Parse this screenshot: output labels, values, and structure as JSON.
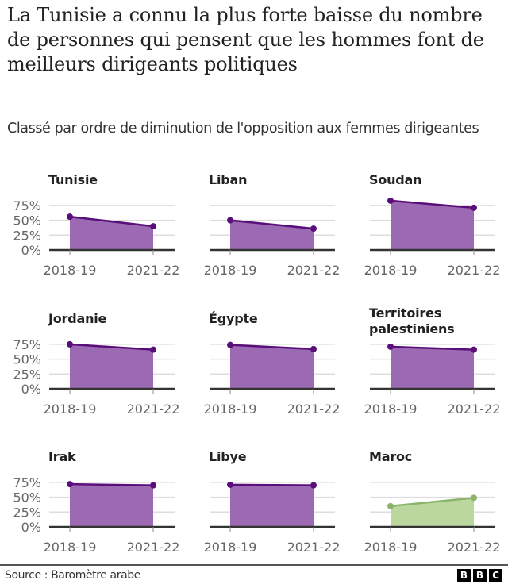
{
  "title": "La Tunisie a connu la plus forte baisse du nombre de personnes qui pensent que les hommes font de meilleurs dirigeants politiques",
  "subtitle": "Classé par ordre de diminution de l'opposition aux femmes dirigeantes",
  "colors": {
    "decline_fill": "#9b6ab3",
    "decline_line": "#5a0e7a",
    "increase_fill": "#bcd79e",
    "increase_line": "#8ab46a",
    "gridline": "#dddddd",
    "axis": "#333333"
  },
  "footer": {
    "source": "Source : Baromètre arabe",
    "logo": [
      "B",
      "B",
      "C"
    ]
  },
  "chart_data": {
    "type": "area",
    "title": "La Tunisie a connu la plus forte baisse du nombre de personnes qui pensent que les hommes font de meilleurs dirigeants politiques",
    "subtitle": "Classé par ordre de diminution de l'opposition aux femmes dirigeantes",
    "categories": [
      "2018-19",
      "2021-22"
    ],
    "yticks": [
      "75%",
      "50%",
      "25%",
      "0%"
    ],
    "ylim": [
      0,
      100
    ],
    "grid": true,
    "xlabel": "",
    "ylabel": "",
    "series": [
      {
        "name": "Tunisie",
        "values": [
          56,
          40
        ],
        "trend": "decline"
      },
      {
        "name": "Liban",
        "values": [
          50,
          36
        ],
        "trend": "decline"
      },
      {
        "name": "Soudan",
        "values": [
          83,
          71
        ],
        "trend": "decline"
      },
      {
        "name": "Jordanie",
        "values": [
          75,
          66
        ],
        "trend": "decline"
      },
      {
        "name": "Égypte",
        "values": [
          74,
          67
        ],
        "trend": "decline"
      },
      {
        "name": "Territoires palestiniens",
        "values": [
          71,
          66
        ],
        "trend": "decline"
      },
      {
        "name": "Irak",
        "values": [
          72,
          70
        ],
        "trend": "decline"
      },
      {
        "name": "Libye",
        "values": [
          71,
          70
        ],
        "trend": "decline"
      },
      {
        "name": "Maroc",
        "values": [
          35,
          49
        ],
        "trend": "increase"
      }
    ],
    "source": "Source : Baromètre arabe"
  }
}
